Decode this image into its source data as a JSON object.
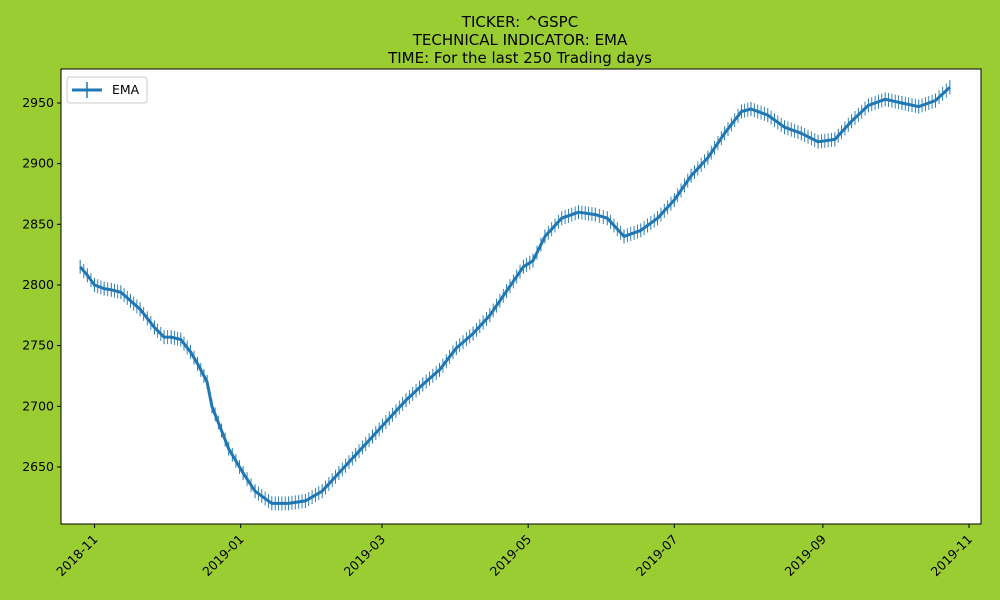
{
  "chart_data": {
    "type": "line",
    "title_lines": [
      "TICKER:  ^GSPC",
      "TECHNICAL INDICATOR:  EMA",
      "TIME: For the last 250 Trading days"
    ],
    "xlabel": "",
    "ylabel": "",
    "x_range": [
      "2018-10-18",
      "2019-11-06"
    ],
    "ylim": [
      2603,
      2978
    ],
    "x_ticks": [
      "2018-11",
      "2019-01",
      "2019-03",
      "2019-05",
      "2019-07",
      "2019-09",
      "2019-11"
    ],
    "y_ticks": [
      "2650",
      "2700",
      "2750",
      "2800",
      "2850",
      "2900",
      "2950"
    ],
    "legend": {
      "position": "top-left",
      "entries": [
        "EMA"
      ]
    },
    "grid": false,
    "marker": "vertical-tick",
    "colors": {
      "series": "#1f77b4",
      "background": "#9acd32",
      "plot_bg": "#ffffff"
    },
    "series": [
      {
        "name": "EMA",
        "x": [
          "2018-10-26",
          "2018-10-29",
          "2018-11-01",
          "2018-11-05",
          "2018-11-08",
          "2018-11-12",
          "2018-11-16",
          "2018-11-20",
          "2018-11-26",
          "2018-11-30",
          "2018-12-03",
          "2018-12-07",
          "2018-12-11",
          "2018-12-14",
          "2018-12-18",
          "2018-12-20",
          "2018-12-24",
          "2018-12-27",
          "2019-01-02",
          "2019-01-07",
          "2019-01-14",
          "2019-01-21",
          "2019-01-28",
          "2019-02-04",
          "2019-02-11",
          "2019-02-18",
          "2019-02-25",
          "2019-03-04",
          "2019-03-11",
          "2019-03-18",
          "2019-03-25",
          "2019-04-01",
          "2019-04-08",
          "2019-04-15",
          "2019-04-22",
          "2019-04-29",
          "2019-05-03",
          "2019-05-08",
          "2019-05-15",
          "2019-05-22",
          "2019-05-29",
          "2019-06-03",
          "2019-06-10",
          "2019-06-17",
          "2019-06-24",
          "2019-07-01",
          "2019-07-08",
          "2019-07-15",
          "2019-07-22",
          "2019-07-29",
          "2019-08-02",
          "2019-08-09",
          "2019-08-16",
          "2019-08-23",
          "2019-08-30",
          "2019-09-06",
          "2019-09-13",
          "2019-09-20",
          "2019-09-27",
          "2019-10-04",
          "2019-10-11",
          "2019-10-18",
          "2019-10-24"
        ],
        "values": [
          2815,
          2808,
          2800,
          2797,
          2796,
          2794,
          2787,
          2780,
          2765,
          2757,
          2757,
          2755,
          2745,
          2735,
          2720,
          2700,
          2680,
          2665,
          2645,
          2630,
          2620,
          2620,
          2622,
          2630,
          2645,
          2660,
          2675,
          2690,
          2705,
          2718,
          2730,
          2748,
          2760,
          2775,
          2795,
          2815,
          2820,
          2840,
          2855,
          2860,
          2858,
          2855,
          2840,
          2845,
          2855,
          2870,
          2890,
          2905,
          2925,
          2943,
          2945,
          2940,
          2930,
          2925,
          2918,
          2920,
          2935,
          2948,
          2953,
          2950,
          2947,
          2952,
          2963
        ]
      }
    ]
  }
}
